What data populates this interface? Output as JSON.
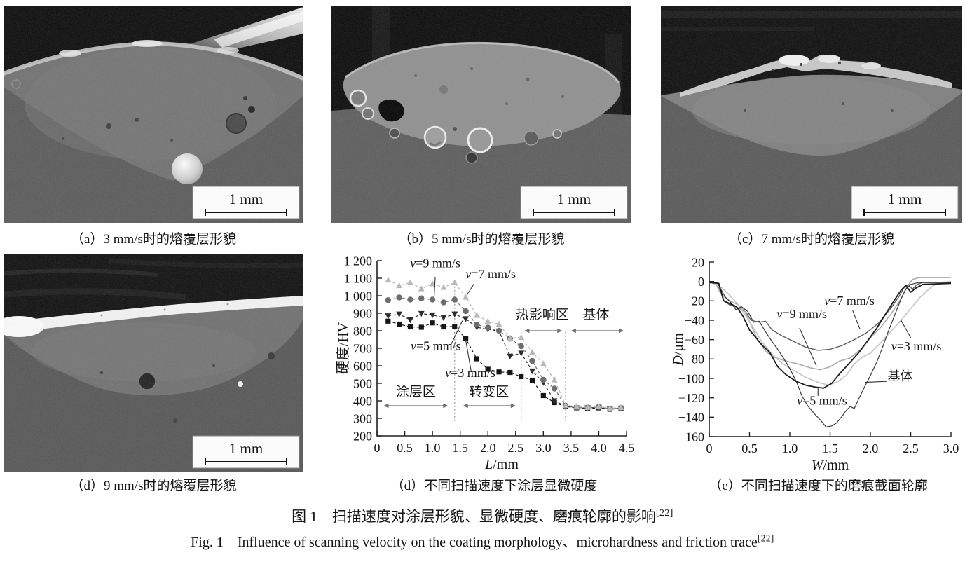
{
  "figure": {
    "caption_zh": "图 1　扫描速度对涂层形貌、显微硬度、磨痕轮廓的影响",
    "caption_zh_ref": "[22]",
    "caption_en": "Fig. 1　Influence of scanning velocity on the coating morphology、microhardness and friction trace",
    "caption_en_ref": "[22]"
  },
  "panels": [
    {
      "id": "a",
      "caption": "（a）3 mm/s时的熔覆层形貌",
      "scale_label": "1 mm"
    },
    {
      "id": "b",
      "caption": "（b）5 mm/s时的熔覆层形貌",
      "scale_label": "1 mm"
    },
    {
      "id": "c",
      "caption": "（c）7 mm/s时的熔覆层形貌",
      "scale_label": "1 mm"
    },
    {
      "id": "d_sem",
      "caption": "（d）9 mm/s时的熔覆层形貌",
      "scale_label": "1 mm"
    },
    {
      "id": "d_chart",
      "caption": "（d）不同扫描速度下涂层显微硬度"
    },
    {
      "id": "e_chart",
      "caption": "（e）不同扫描速度下的磨痕截面轮廓"
    }
  ],
  "chart_data": [
    {
      "id": "hardness",
      "type": "line",
      "title": "",
      "xlabel": "L/mm",
      "ylabel": "硬度/HV",
      "xlim": [
        0,
        4.5
      ],
      "ylim": [
        200,
        1200
      ],
      "grid": false,
      "legend": "inline-labels",
      "xticks": {
        "values": [
          0,
          0.5,
          1,
          1.5,
          2,
          2.5,
          3,
          3.5,
          4,
          4.5
        ],
        "labels": [
          "0",
          "0.5",
          "1.0",
          "1.5",
          "2.0",
          "2.5",
          "3.0",
          "3.5",
          "4.0",
          "4.5"
        ]
      },
      "yticks": {
        "values": [
          200,
          300,
          400,
          500,
          600,
          700,
          800,
          900,
          1000,
          1100,
          1200
        ],
        "labels": [
          "200",
          "300",
          "400",
          "500",
          "600",
          "700",
          "800",
          "900",
          "1 000",
          "1 100",
          "1 200"
        ]
      },
      "x": [
        0.2,
        0.4,
        0.6,
        0.8,
        1.0,
        1.2,
        1.4,
        1.6,
        1.8,
        2.0,
        2.2,
        2.4,
        2.6,
        2.8,
        3.0,
        3.2,
        3.4,
        3.6,
        3.8,
        4.0,
        4.2,
        4.4
      ],
      "series": [
        {
          "name": "v=3 mm/s",
          "marker": "square",
          "color": "#161616",
          "values": [
            855,
            838,
            822,
            820,
            845,
            822,
            825,
            755,
            640,
            580,
            565,
            562,
            538,
            518,
            430,
            390,
            368,
            360,
            357,
            360,
            352,
            356
          ]
        },
        {
          "name": "v=5 mm/s",
          "marker": "triangle-down",
          "color": "#2d2d2d",
          "values": [
            885,
            895,
            862,
            898,
            890,
            875,
            895,
            868,
            820,
            808,
            798,
            655,
            672,
            570,
            505,
            400,
            370,
            358,
            360,
            362,
            353,
            358
          ]
        },
        {
          "name": "v=9 mm/s",
          "marker": "circle",
          "color": "#6e6e6e",
          "values": [
            975,
            990,
            978,
            985,
            978,
            962,
            978,
            912,
            835,
            818,
            800,
            755,
            712,
            628,
            520,
            470,
            372,
            360,
            362,
            365,
            356,
            360
          ]
        },
        {
          "name": "v=7 mm/s",
          "marker": "triangle-up",
          "color": "#b9b9b9",
          "values": [
            1090,
            1058,
            1075,
            1040,
            1068,
            1048,
            1075,
            992,
            888,
            855,
            838,
            758,
            762,
            678,
            612,
            520,
            375,
            368,
            362,
            368,
            358,
            362
          ]
        }
      ],
      "vlines": [
        {
          "x": 1.4,
          "y1": 285,
          "y2": 1090
        },
        {
          "x": 2.6,
          "y1": 285,
          "y2": 815
        },
        {
          "x": 3.4,
          "y1": 285,
          "y2": 805
        }
      ],
      "regions": [
        {
          "label": "涂层区",
          "text_x": 0.7,
          "text_y": 428,
          "arrow_x1": 0.12,
          "arrow_x2": 1.28,
          "arrow_y": 372
        },
        {
          "label": "转变区",
          "text_x": 2.02,
          "text_y": 428,
          "arrow_x1": 1.55,
          "arrow_x2": 2.5,
          "arrow_y": 372
        },
        {
          "label": "热影响区",
          "text_x": 2.98,
          "text_y": 868,
          "arrow_x1": 2.66,
          "arrow_x2": 3.34,
          "arrow_y": 800
        },
        {
          "label": "基体",
          "text_x": 3.95,
          "text_y": 868,
          "arrow_x1": 3.5,
          "arrow_x2": 4.45,
          "arrow_y": 800
        }
      ],
      "series_labels": [
        {
          "label": "v=9 mm/s",
          "x": 1.05,
          "y": 1163,
          "lx1": 1.05,
          "ly1": 1108,
          "lx2": 1.03,
          "ly2": 995
        },
        {
          "label": "v=7 mm/s",
          "x": 2.05,
          "y": 1100,
          "lx1": 1.75,
          "ly1": 1068,
          "lx2": 1.62,
          "ly2": 1005
        },
        {
          "label": "v=5 mm/s",
          "x": 1.06,
          "y": 690,
          "lx1": 1.33,
          "ly1": 718,
          "lx2": 1.54,
          "ly2": 858
        },
        {
          "label": "v=3 mm/s",
          "x": 1.68,
          "y": 536,
          "lx1": 1.7,
          "ly1": 565,
          "lx2": 1.6,
          "ly2": 745
        }
      ]
    },
    {
      "id": "profile",
      "type": "line",
      "title": "",
      "xlabel": "W/mm",
      "ylabel": "D/μm",
      "xlim": [
        0,
        3.0
      ],
      "ylim": [
        -160,
        20
      ],
      "grid": false,
      "legend": "inline-labels",
      "xticks": {
        "values": [
          0,
          0.5,
          1,
          1.5,
          2,
          2.5,
          3
        ],
        "labels": [
          "0",
          "0.5",
          "1.0",
          "1.5",
          "2.0",
          "2.5",
          "3.0"
        ]
      },
      "yticks": {
        "values": [
          20,
          0,
          -20,
          -40,
          -60,
          -80,
          -100,
          -120,
          -140,
          -160
        ],
        "labels": [
          "20",
          "0",
          "−20",
          "−40",
          "−60",
          "−80",
          "−100",
          "−120",
          "−140",
          "−160"
        ]
      },
      "series": [
        {
          "name": "v=7 mm/s",
          "color": "#5c5c5c",
          "width": 1.4,
          "points": [
            [
              0,
              -1
            ],
            [
              0.1,
              -1
            ],
            [
              0.18,
              -20
            ],
            [
              0.25,
              -24
            ],
            [
              0.35,
              -27
            ],
            [
              0.45,
              -31
            ],
            [
              0.52,
              -40
            ],
            [
              0.62,
              -42
            ],
            [
              0.7,
              -41
            ],
            [
              0.78,
              -50
            ],
            [
              0.9,
              -56
            ],
            [
              1.05,
              -62
            ],
            [
              1.2,
              -68
            ],
            [
              1.35,
              -71
            ],
            [
              1.5,
              -70
            ],
            [
              1.65,
              -66
            ],
            [
              1.8,
              -60
            ],
            [
              1.95,
              -53
            ],
            [
              2.1,
              -43
            ],
            [
              2.25,
              -28
            ],
            [
              2.35,
              -16
            ],
            [
              2.42,
              -6
            ],
            [
              2.47,
              -3
            ],
            [
              2.52,
              -8
            ],
            [
              2.58,
              -3
            ],
            [
              2.65,
              -1
            ],
            [
              3,
              -1
            ]
          ]
        },
        {
          "name": "v=9 mm/s",
          "color": "#ababab",
          "width": 1.6,
          "points": [
            [
              0,
              -1
            ],
            [
              0.08,
              -2
            ],
            [
              0.14,
              -12
            ],
            [
              0.2,
              -17
            ],
            [
              0.28,
              -21
            ],
            [
              0.36,
              -24
            ],
            [
              0.44,
              -30
            ],
            [
              0.52,
              -45
            ],
            [
              0.6,
              -60
            ],
            [
              0.7,
              -72
            ],
            [
              0.8,
              -78
            ],
            [
              0.95,
              -82
            ],
            [
              1.1,
              -85
            ],
            [
              1.25,
              -89
            ],
            [
              1.38,
              -91
            ],
            [
              1.5,
              -88
            ],
            [
              1.62,
              -82
            ],
            [
              1.75,
              -79
            ],
            [
              1.88,
              -70
            ],
            [
              2.0,
              -58
            ],
            [
              2.12,
              -48
            ],
            [
              2.25,
              -34
            ],
            [
              2.35,
              -22
            ],
            [
              2.45,
              -6
            ],
            [
              2.52,
              2
            ],
            [
              2.6,
              4
            ],
            [
              2.8,
              4
            ],
            [
              3,
              4
            ]
          ]
        },
        {
          "name": "v=3 mm/s",
          "color": "#c4c4c4",
          "width": 1.6,
          "points": [
            [
              0,
              0
            ],
            [
              0.15,
              -6
            ],
            [
              0.25,
              -14
            ],
            [
              0.35,
              -23
            ],
            [
              0.45,
              -35
            ],
            [
              0.55,
              -48
            ],
            [
              0.65,
              -62
            ],
            [
              0.78,
              -75
            ],
            [
              0.9,
              -84
            ],
            [
              1.05,
              -92
            ],
            [
              1.2,
              -99
            ],
            [
              1.35,
              -104
            ],
            [
              1.48,
              -107
            ],
            [
              1.6,
              -103
            ],
            [
              1.7,
              -97
            ],
            [
              1.8,
              -85
            ],
            [
              1.9,
              -78
            ],
            [
              2.0,
              -74
            ],
            [
              2.12,
              -64
            ],
            [
              2.25,
              -52
            ],
            [
              2.38,
              -40
            ],
            [
              2.5,
              -28
            ],
            [
              2.62,
              -16
            ],
            [
              2.75,
              -6
            ],
            [
              2.85,
              -1
            ],
            [
              3,
              0
            ]
          ]
        },
        {
          "name": "基体",
          "color": "#3a3a3a",
          "width": 1.2,
          "points": [
            [
              0,
              -1
            ],
            [
              0.1,
              -1
            ],
            [
              0.15,
              -9
            ],
            [
              0.2,
              -16
            ],
            [
              0.27,
              -22
            ],
            [
              0.33,
              -29
            ],
            [
              0.4,
              -26
            ],
            [
              0.48,
              -31
            ],
            [
              0.55,
              -42
            ],
            [
              0.62,
              -41
            ],
            [
              0.7,
              -52
            ],
            [
              0.78,
              -62
            ],
            [
              0.85,
              -70
            ],
            [
              0.93,
              -80
            ],
            [
              1.0,
              -90
            ],
            [
              1.08,
              -103
            ],
            [
              1.15,
              -118
            ],
            [
              1.22,
              -128
            ],
            [
              1.3,
              -136
            ],
            [
              1.38,
              -143
            ],
            [
              1.45,
              -150
            ],
            [
              1.52,
              -149
            ],
            [
              1.58,
              -146
            ],
            [
              1.65,
              -139
            ],
            [
              1.7,
              -133
            ],
            [
              1.75,
              -129
            ],
            [
              1.8,
              -131
            ],
            [
              1.85,
              -122
            ],
            [
              1.92,
              -110
            ],
            [
              2.0,
              -97
            ],
            [
              2.08,
              -83
            ],
            [
              2.15,
              -68
            ],
            [
              2.22,
              -52
            ],
            [
              2.3,
              -35
            ],
            [
              2.38,
              -18
            ],
            [
              2.44,
              -8
            ],
            [
              2.5,
              -3
            ],
            [
              2.6,
              -1
            ],
            [
              3,
              -1
            ]
          ]
        },
        {
          "name": "v=5 mm/s",
          "color": "#1c1c1c",
          "width": 1.8,
          "points": [
            [
              0,
              -1
            ],
            [
              0.12,
              -2
            ],
            [
              0.18,
              -20
            ],
            [
              0.26,
              -23
            ],
            [
              0.34,
              -26
            ],
            [
              0.42,
              -36
            ],
            [
              0.5,
              -50
            ],
            [
              0.58,
              -58
            ],
            [
              0.66,
              -66
            ],
            [
              0.75,
              -73
            ],
            [
              0.85,
              -88
            ],
            [
              0.95,
              -96
            ],
            [
              1.08,
              -103
            ],
            [
              1.2,
              -107
            ],
            [
              1.32,
              -109
            ],
            [
              1.42,
              -110
            ],
            [
              1.52,
              -105
            ],
            [
              1.62,
              -95
            ],
            [
              1.72,
              -86
            ],
            [
              1.85,
              -74
            ],
            [
              1.95,
              -63
            ],
            [
              2.08,
              -48
            ],
            [
              2.2,
              -32
            ],
            [
              2.3,
              -19
            ],
            [
              2.38,
              -9
            ],
            [
              2.44,
              -4
            ],
            [
              2.5,
              -11
            ],
            [
              2.56,
              -7
            ],
            [
              2.65,
              -3
            ],
            [
              3,
              -2
            ]
          ]
        }
      ],
      "series_labels": [
        {
          "label": "v=7 mm/s",
          "x": 1.74,
          "y": -24,
          "lx1": 1.78,
          "ly1": -30,
          "lx2": 1.87,
          "ly2": -49
        },
        {
          "label": "v=9 mm/s",
          "x": 1.15,
          "y": -38,
          "lx1": 1.12,
          "ly1": -48,
          "lx2": 1.33,
          "ly2": -87
        },
        {
          "label": "v=3 mm/s",
          "x": 2.57,
          "y": -71,
          "lx1": 2.5,
          "ly1": -58,
          "lx2": 2.38,
          "ly2": -40
        },
        {
          "label": "v=5 mm/s",
          "x": 1.4,
          "y": -127,
          "lx1": 1.35,
          "ly1": -118,
          "lx2": 1.35,
          "ly2": -109
        },
        {
          "label": "基体",
          "x": 2.37,
          "y": -102,
          "lx1": 2.2,
          "ly1": -103,
          "lx2": 1.93,
          "ly2": -104
        }
      ]
    }
  ]
}
